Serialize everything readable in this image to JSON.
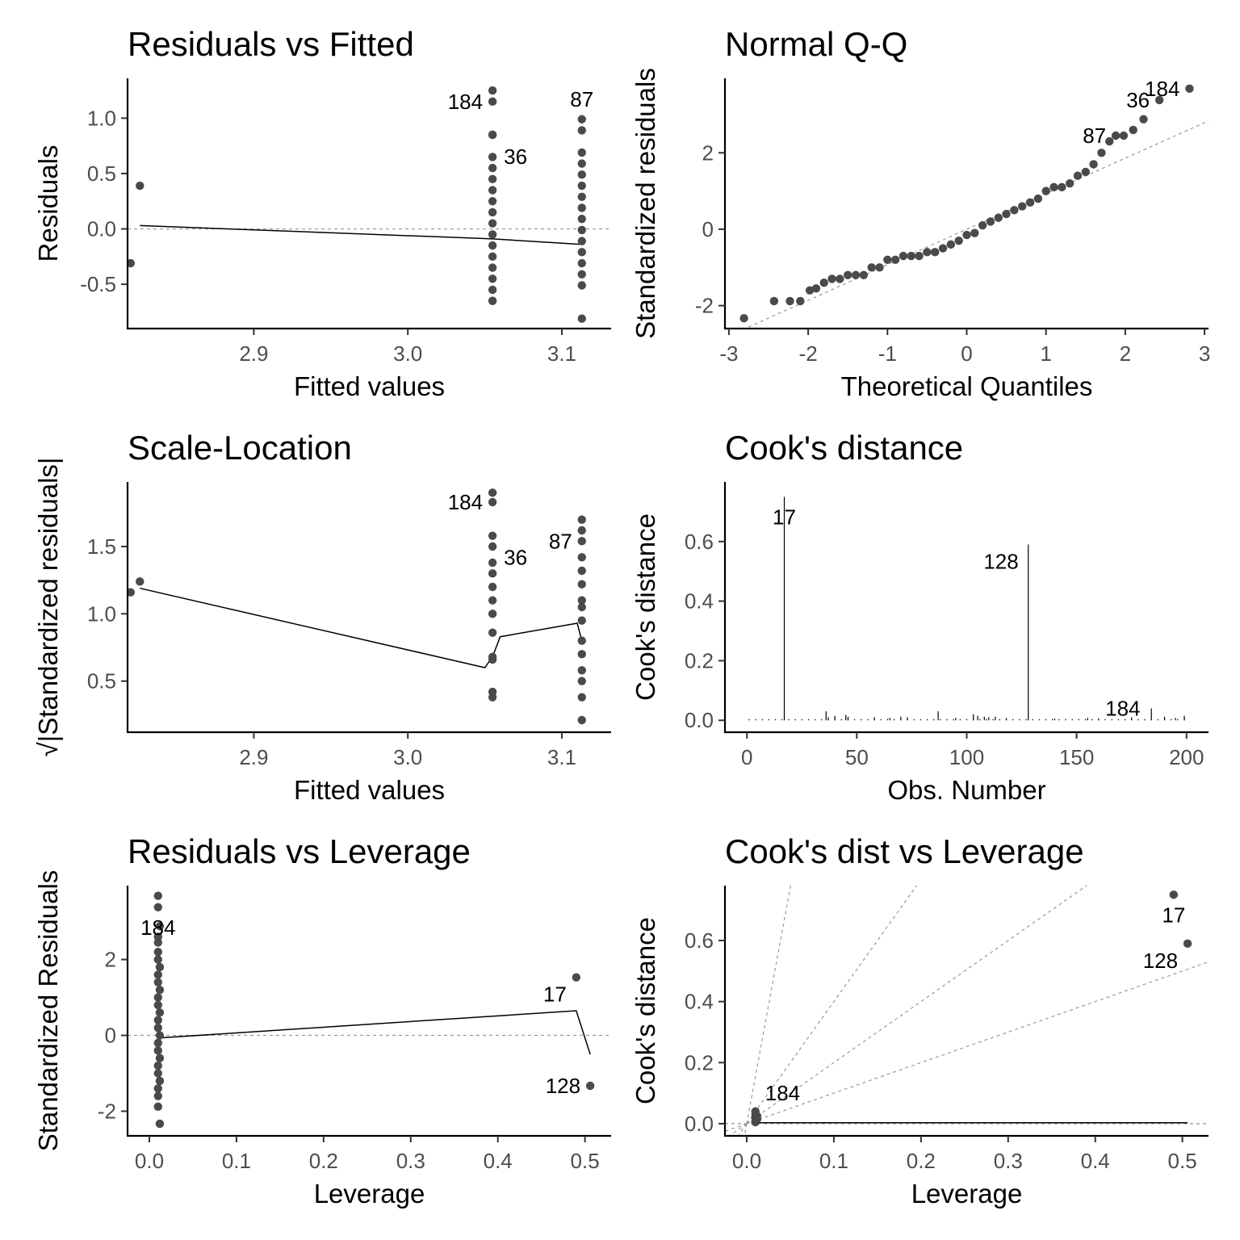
{
  "chart_data": [
    {
      "type": "scatter",
      "title": "Residuals vs Fitted",
      "xlabel": "Fitted values",
      "ylabel": "Residuals",
      "xlim": [
        2.818,
        3.132
      ],
      "ylim": [
        -0.9,
        1.36
      ],
      "xticks": [
        2.9,
        3.0,
        3.1
      ],
      "xtick_labels": [
        "2.9",
        "3.0",
        "3.1"
      ],
      "yticks": [
        -0.5,
        0.0,
        0.5,
        1.0
      ],
      "ytick_labels": [
        "-0.5",
        "0.0",
        "0.5",
        "1.0"
      ],
      "refline": {
        "type": "h",
        "value": 0
      },
      "points": [
        [
          2.82,
          -0.31
        ],
        [
          2.826,
          0.39
        ],
        [
          3.055,
          1.25
        ],
        [
          3.055,
          1.15
        ],
        [
          3.055,
          0.85
        ],
        [
          3.055,
          0.85
        ],
        [
          3.055,
          0.65
        ],
        [
          3.055,
          0.55
        ],
        [
          3.055,
          0.45
        ],
        [
          3.055,
          0.35
        ],
        [
          3.055,
          0.25
        ],
        [
          3.055,
          0.15
        ],
        [
          3.055,
          0.05
        ],
        [
          3.055,
          -0.05
        ],
        [
          3.055,
          -0.15
        ],
        [
          3.055,
          -0.25
        ],
        [
          3.055,
          -0.35
        ],
        [
          3.055,
          -0.45
        ],
        [
          3.055,
          -0.55
        ],
        [
          3.055,
          -0.65
        ],
        [
          3.055,
          -0.65
        ],
        [
          3.113,
          0.99
        ],
        [
          3.113,
          0.89
        ],
        [
          3.113,
          0.69
        ],
        [
          3.113,
          0.59
        ],
        [
          3.113,
          0.49
        ],
        [
          3.113,
          0.39
        ],
        [
          3.113,
          0.29
        ],
        [
          3.113,
          0.19
        ],
        [
          3.113,
          0.09
        ],
        [
          3.113,
          -0.01
        ],
        [
          3.113,
          -0.11
        ],
        [
          3.113,
          -0.21
        ],
        [
          3.113,
          -0.31
        ],
        [
          3.113,
          -0.41
        ],
        [
          3.113,
          -0.51
        ],
        [
          3.113,
          -0.81
        ]
      ],
      "smooth": [
        [
          2.826,
          0.03
        ],
        [
          3.055,
          -0.09
        ],
        [
          3.113,
          -0.14
        ]
      ],
      "point_labels": [
        {
          "text": "184",
          "x": 3.055,
          "y": 1.15,
          "side": "left"
        },
        {
          "text": "36",
          "x": 3.055,
          "y": 0.85,
          "side": "right"
        },
        {
          "text": "87",
          "x": 3.113,
          "y": 0.99,
          "side": "above"
        }
      ]
    },
    {
      "type": "scatter",
      "title": "Normal Q-Q",
      "xlabel": "Theoretical Quantiles",
      "ylabel": "Standardized residuals",
      "xlim": [
        -3.05,
        3.05
      ],
      "ylim": [
        -2.6,
        3.95
      ],
      "xticks": [
        -3,
        -2,
        -1,
        0,
        1,
        2,
        3
      ],
      "xtick_labels": [
        "-3",
        "-2",
        "-1",
        "0",
        "1",
        "2",
        "3"
      ],
      "yticks": [
        -2,
        0,
        2
      ],
      "ytick_labels": [
        "-2",
        "0",
        "2"
      ],
      "refline": {
        "type": "line",
        "intercept": 0,
        "slope": 0.93
      },
      "points": [
        [
          -2.81,
          -2.33
        ],
        [
          -2.43,
          -1.88
        ],
        [
          -2.23,
          -1.88
        ],
        [
          -2.1,
          -1.88
        ],
        [
          -1.98,
          -1.6
        ],
        [
          -1.9,
          -1.55
        ],
        [
          -1.8,
          -1.4
        ],
        [
          -1.7,
          -1.3
        ],
        [
          -1.6,
          -1.3
        ],
        [
          -1.5,
          -1.2
        ],
        [
          -1.4,
          -1.2
        ],
        [
          -1.3,
          -1.2
        ],
        [
          -1.2,
          -1.0
        ],
        [
          -1.1,
          -1.0
        ],
        [
          -1.0,
          -0.8
        ],
        [
          -0.9,
          -0.8
        ],
        [
          -0.8,
          -0.7
        ],
        [
          -0.7,
          -0.7
        ],
        [
          -0.6,
          -0.7
        ],
        [
          -0.5,
          -0.6
        ],
        [
          -0.4,
          -0.6
        ],
        [
          -0.3,
          -0.5
        ],
        [
          -0.2,
          -0.4
        ],
        [
          -0.1,
          -0.3
        ],
        [
          0.0,
          -0.15
        ],
        [
          0.1,
          -0.1
        ],
        [
          0.2,
          0.1
        ],
        [
          0.3,
          0.2
        ],
        [
          0.4,
          0.3
        ],
        [
          0.5,
          0.4
        ],
        [
          0.6,
          0.5
        ],
        [
          0.7,
          0.6
        ],
        [
          0.8,
          0.7
        ],
        [
          0.9,
          0.8
        ],
        [
          1.0,
          1.0
        ],
        [
          1.1,
          1.1
        ],
        [
          1.2,
          1.1
        ],
        [
          1.3,
          1.2
        ],
        [
          1.4,
          1.4
        ],
        [
          1.5,
          1.5
        ],
        [
          1.6,
          1.7
        ],
        [
          1.7,
          2.0
        ],
        [
          1.8,
          2.3
        ],
        [
          1.88,
          2.45
        ],
        [
          1.98,
          2.45
        ],
        [
          2.1,
          2.6
        ],
        [
          2.23,
          2.88
        ],
        [
          2.43,
          3.38
        ],
        [
          2.81,
          3.68
        ]
      ],
      "point_labels": [
        {
          "text": "36",
          "x": 2.43,
          "y": 3.38,
          "side": "left"
        },
        {
          "text": "184",
          "x": 2.81,
          "y": 3.68,
          "side": "left"
        },
        {
          "text": "87",
          "x": 1.88,
          "y": 2.45,
          "side": "left"
        }
      ]
    },
    {
      "type": "scatter",
      "title": "Scale-Location",
      "xlabel": "Fitted values",
      "ylabel": "√|Standardized residuals|",
      "ylabel_radical": "√",
      "ylabel_body": "|Standardized residuals|",
      "xlim": [
        2.818,
        3.132
      ],
      "ylim": [
        0.12,
        1.98
      ],
      "xticks": [
        2.9,
        3.0,
        3.1
      ],
      "xtick_labels": [
        "2.9",
        "3.0",
        "3.1"
      ],
      "yticks": [
        0.5,
        1.0,
        1.5
      ],
      "ytick_labels": [
        "0.5",
        "1.0",
        "1.5"
      ],
      "points": [
        [
          2.82,
          1.16
        ],
        [
          2.826,
          1.24
        ],
        [
          3.055,
          1.9
        ],
        [
          3.055,
          1.83
        ],
        [
          3.055,
          1.58
        ],
        [
          3.055,
          1.5
        ],
        [
          3.055,
          1.38
        ],
        [
          3.055,
          1.3
        ],
        [
          3.055,
          1.2
        ],
        [
          3.055,
          1.1
        ],
        [
          3.055,
          1.0
        ],
        [
          3.055,
          0.86
        ],
        [
          3.055,
          0.68
        ],
        [
          3.055,
          0.66
        ],
        [
          3.055,
          0.42
        ],
        [
          3.055,
          0.38
        ],
        [
          3.113,
          1.7
        ],
        [
          3.113,
          1.62
        ],
        [
          3.113,
          1.54
        ],
        [
          3.113,
          1.42
        ],
        [
          3.113,
          1.32
        ],
        [
          3.113,
          1.22
        ],
        [
          3.113,
          1.1
        ],
        [
          3.113,
          1.05
        ],
        [
          3.113,
          0.95
        ],
        [
          3.113,
          0.8
        ],
        [
          3.113,
          0.7
        ],
        [
          3.113,
          0.58
        ],
        [
          3.113,
          0.5
        ],
        [
          3.113,
          0.38
        ],
        [
          3.113,
          0.21
        ]
      ],
      "smooth": [
        [
          2.826,
          1.19
        ],
        [
          3.05,
          0.6
        ],
        [
          3.055,
          0.68
        ],
        [
          3.06,
          0.83
        ],
        [
          3.11,
          0.93
        ],
        [
          3.113,
          0.8
        ]
      ],
      "point_labels": [
        {
          "text": "184",
          "x": 3.055,
          "y": 1.83,
          "side": "left"
        },
        {
          "text": "36",
          "x": 3.055,
          "y": 1.58,
          "side": "right"
        },
        {
          "text": "87",
          "x": 3.113,
          "y": 1.54,
          "side": "left"
        }
      ]
    },
    {
      "type": "bar",
      "title": "Cook's distance",
      "xlabel": "Obs. Number",
      "ylabel": "Cook's distance",
      "xlim": [
        -10,
        210
      ],
      "ylim": [
        -0.04,
        0.8
      ],
      "xticks": [
        0,
        50,
        100,
        150,
        200
      ],
      "xtick_labels": [
        "0",
        "50",
        "100",
        "150",
        "200"
      ],
      "yticks": [
        0.0,
        0.2,
        0.4,
        0.6
      ],
      "ytick_labels": [
        "0.0",
        "0.2",
        "0.4",
        "0.6"
      ],
      "stems": [
        [
          17,
          0.75
        ],
        [
          128,
          0.59
        ],
        [
          36,
          0.03
        ],
        [
          37,
          0.01
        ],
        [
          40,
          0.015
        ],
        [
          45,
          0.018
        ],
        [
          46,
          0.012
        ],
        [
          58,
          0.01
        ],
        [
          65,
          0.008
        ],
        [
          70,
          0.012
        ],
        [
          73,
          0.01
        ],
        [
          87,
          0.03
        ],
        [
          95,
          0.008
        ],
        [
          103,
          0.02
        ],
        [
          105,
          0.015
        ],
        [
          108,
          0.012
        ],
        [
          110,
          0.01
        ],
        [
          113,
          0.012
        ],
        [
          118,
          0.008
        ],
        [
          140,
          0.006
        ],
        [
          155,
          0.008
        ],
        [
          160,
          0.006
        ],
        [
          175,
          0.01
        ],
        [
          184,
          0.04
        ],
        [
          190,
          0.012
        ],
        [
          195,
          0.008
        ],
        [
          199,
          0.015
        ]
      ],
      "point_labels": [
        {
          "text": "17",
          "x": 17,
          "y": 0.75,
          "side": "below"
        },
        {
          "text": "128",
          "x": 128,
          "y": 0.59,
          "side": "below-left"
        },
        {
          "text": "184",
          "x": 171,
          "y": 0.015,
          "side": "center"
        }
      ]
    },
    {
      "type": "scatter",
      "title": "Residuals vs Leverage",
      "xlabel": "Leverage",
      "ylabel": "Standardized Residuals",
      "xlim": [
        -0.025,
        0.53
      ],
      "ylim": [
        -2.65,
        3.95
      ],
      "xticks": [
        0.0,
        0.1,
        0.2,
        0.3,
        0.4,
        0.5
      ],
      "xtick_labels": [
        "0.0",
        "0.1",
        "0.2",
        "0.3",
        "0.4",
        "0.5"
      ],
      "yticks": [
        -2,
        0,
        2
      ],
      "ytick_labels": [
        "-2",
        "0",
        "2"
      ],
      "refline": {
        "type": "h",
        "value": 0
      },
      "points": [
        [
          0.01,
          3.68
        ],
        [
          0.01,
          3.38
        ],
        [
          0.012,
          2.88
        ],
        [
          0.01,
          2.6
        ],
        [
          0.01,
          2.45
        ],
        [
          0.01,
          2.2
        ],
        [
          0.01,
          2.0
        ],
        [
          0.012,
          1.8
        ],
        [
          0.01,
          1.6
        ],
        [
          0.01,
          1.4
        ],
        [
          0.012,
          1.2
        ],
        [
          0.01,
          1.0
        ],
        [
          0.01,
          0.8
        ],
        [
          0.012,
          0.6
        ],
        [
          0.01,
          0.4
        ],
        [
          0.01,
          0.2
        ],
        [
          0.012,
          0.0
        ],
        [
          0.01,
          -0.2
        ],
        [
          0.01,
          -0.4
        ],
        [
          0.012,
          -0.6
        ],
        [
          0.01,
          -0.8
        ],
        [
          0.01,
          -1.0
        ],
        [
          0.012,
          -1.2
        ],
        [
          0.01,
          -1.4
        ],
        [
          0.01,
          -1.6
        ],
        [
          0.01,
          -1.88
        ],
        [
          0.012,
          -2.33
        ],
        [
          0.49,
          1.53
        ],
        [
          0.506,
          -1.33
        ]
      ],
      "smooth": [
        [
          0.01,
          -0.07
        ],
        [
          0.49,
          0.65
        ],
        [
          0.506,
          -0.5
        ]
      ],
      "point_labels": [
        {
          "text": "184",
          "x": 0.01,
          "y": 3.38,
          "side": "below"
        },
        {
          "text": "17",
          "x": 0.49,
          "y": 1.53,
          "side": "below-left"
        },
        {
          "text": "128",
          "x": 0.506,
          "y": -1.33,
          "side": "left"
        }
      ]
    },
    {
      "type": "scatter",
      "title": "Cook's dist vs Leverage",
      "xlabel": "Leverage",
      "ylabel": "Cook's distance",
      "xlim": [
        -0.025,
        0.53
      ],
      "ylim": [
        -0.04,
        0.78
      ],
      "xticks": [
        0.0,
        0.1,
        0.2,
        0.3,
        0.4,
        0.5
      ],
      "xtick_labels": [
        "0.0",
        "0.1",
        "0.2",
        "0.3",
        "0.4",
        "0.5"
      ],
      "yticks": [
        0.0,
        0.2,
        0.4,
        0.6
      ],
      "ytick_labels": [
        "0.0",
        "0.2",
        "0.4",
        "0.6"
      ],
      "refline": {
        "type": "h",
        "value": 0
      },
      "contour_slopes": [
        1,
        2,
        4,
        15.5
      ],
      "points": [
        [
          0.01,
          0.04
        ],
        [
          0.01,
          0.03
        ],
        [
          0.01,
          0.02
        ],
        [
          0.01,
          0.01
        ],
        [
          0.01,
          0.005
        ],
        [
          0.012,
          0.015
        ],
        [
          0.012,
          0.025
        ],
        [
          0.49,
          0.75
        ],
        [
          0.506,
          0.59
        ]
      ],
      "smooth": [
        [
          0.01,
          0.003
        ],
        [
          0.506,
          0.003
        ]
      ],
      "point_labels": [
        {
          "text": "17",
          "x": 0.49,
          "y": 0.75,
          "side": "below"
        },
        {
          "text": "128",
          "x": 0.506,
          "y": 0.59,
          "side": "below-left"
        },
        {
          "text": "184",
          "x": 0.01,
          "y": 0.04,
          "side": "above-right"
        }
      ]
    }
  ]
}
